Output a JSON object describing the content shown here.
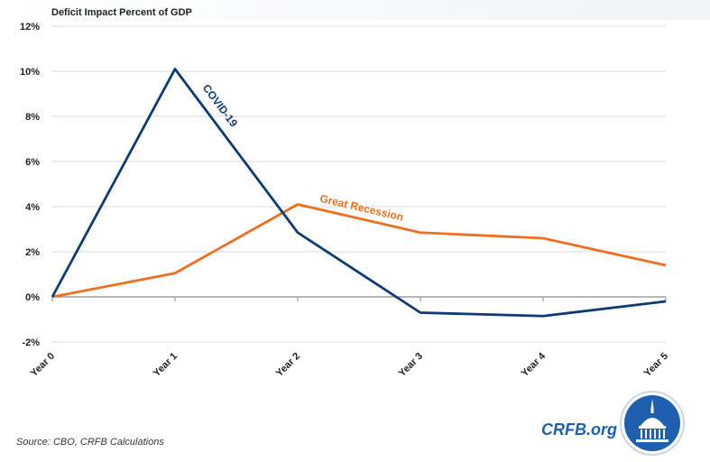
{
  "header": {
    "title": "Deficit Impact Percent of GDP"
  },
  "footer": {
    "source": "Source: CBO, CRFB Calculations",
    "brand": "CRFB.org",
    "seal_icon": "capitol-dome-seal-icon"
  },
  "colors": {
    "covid": "#0d3b73",
    "recession": "#ee6f1c",
    "grid": "#d9d9d9",
    "axis_text": "#1f1f1f",
    "seal_fill": "#1f5fb0"
  },
  "chart_data": {
    "type": "line",
    "categories": [
      "Year 0",
      "Year 1",
      "Year 2",
      "Year 3",
      "Year 4",
      "Year 5"
    ],
    "ylim": [
      -2,
      12
    ],
    "yticks": [
      -2,
      0,
      2,
      4,
      6,
      8,
      10,
      12
    ],
    "ytick_labels": [
      "-2%",
      "0%",
      "2%",
      "4%",
      "6%",
      "8%",
      "10%",
      "12%"
    ],
    "grid": true,
    "series": [
      {
        "name": "COVID-19",
        "values": [
          0,
          10.1,
          2.85,
          -0.7,
          -0.85,
          -0.2
        ]
      },
      {
        "name": "Great Recession",
        "values": [
          0,
          1.05,
          4.1,
          2.85,
          2.6,
          1.4
        ]
      }
    ]
  }
}
